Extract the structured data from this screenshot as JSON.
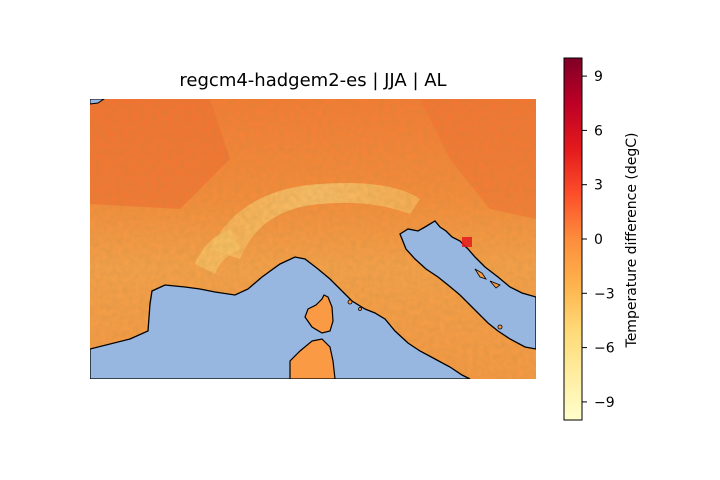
{
  "title": "regcm4-hadgem2-es | JJA | AL",
  "colorbar": {
    "label": "Temperature difference (degC)",
    "ticks": [
      "9",
      "6",
      "3",
      "0",
      "−3",
      "−6",
      "−9"
    ],
    "tick_values": [
      9,
      6,
      3,
      0,
      -3,
      -6,
      -9
    ],
    "range": [
      -10,
      10
    ],
    "colormap": "YlOrRd",
    "colors": [
      "#ffffcc",
      "#ffeda0",
      "#fed976",
      "#feb24c",
      "#fd8d3c",
      "#fc4e2a",
      "#e31a1c",
      "#bd0026",
      "#800026"
    ]
  },
  "map": {
    "land_color": "#f7923a",
    "sea_color": "#97b6e0",
    "coastline_color": "#000000"
  }
}
